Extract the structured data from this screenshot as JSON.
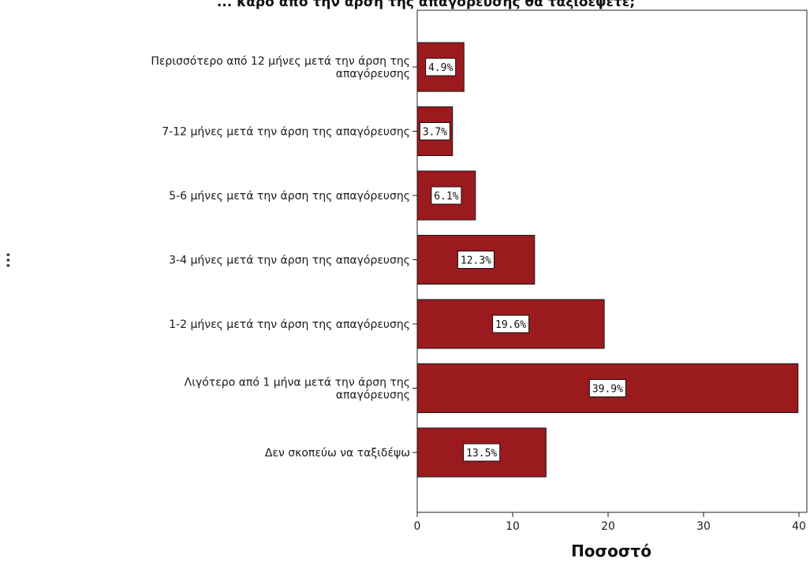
{
  "chart_data": {
    "type": "bar",
    "orientation": "horizontal",
    "title": "... κάρο απο την άρση της απαγόρευσης θα ταξιδέψετε;",
    "xlabel": "Ποσοστό",
    "ylabel": "...",
    "xlim": [
      0,
      40
    ],
    "xticks": [
      "0",
      "10",
      "20",
      "30",
      "40"
    ],
    "categories": [
      "Περισσότερο από 12 μήνες μετά την άρση της απαγόρευσης",
      "7-12 μήνες μετά την άρση της απαγόρευσης",
      "5-6 μήνες μετά την άρση της απαγόρευσης",
      "3-4 μήνες μετά την άρση της απαγόρευσης",
      "1-2 μήνες μετά την άρση της απαγόρευσης",
      "Λιγότερο από 1 μήνα μετά την άρση της απαγόρευσης",
      "Δεν σκοπεύω να ταξιδέψω"
    ],
    "values": [
      4.9,
      3.7,
      6.1,
      12.3,
      19.6,
      39.9,
      13.5
    ],
    "data_labels": [
      "4.9%",
      "3.7%",
      "6.1%",
      "12.3%",
      "19.6%",
      "39.9%",
      "13.5%"
    ],
    "bar_color": "#9b1a1e",
    "grid": false,
    "legend": "none"
  }
}
